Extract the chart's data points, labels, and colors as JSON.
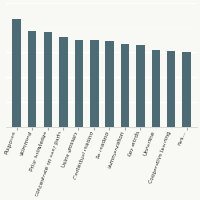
{
  "categories": [
    "Purposes",
    "Skimming",
    "Prior knowledge",
    "Concentrate on easy parts",
    "Using glossary",
    "Contextual reading",
    "Re-reading",
    "Summarization",
    "Key words",
    "Underline",
    "Cooperative learning",
    "Rea..."
  ],
  "values": [
    4.35,
    3.85,
    3.8,
    3.6,
    3.5,
    3.48,
    3.44,
    3.35,
    3.28,
    3.1,
    3.05,
    3.02
  ],
  "bar_color": "#4d6b74",
  "ylim": [
    0,
    5
  ],
  "background_color": "#f8f8f5",
  "title": "",
  "bar_width": 0.55,
  "label_fontsize": 4.2,
  "label_rotation": 70
}
